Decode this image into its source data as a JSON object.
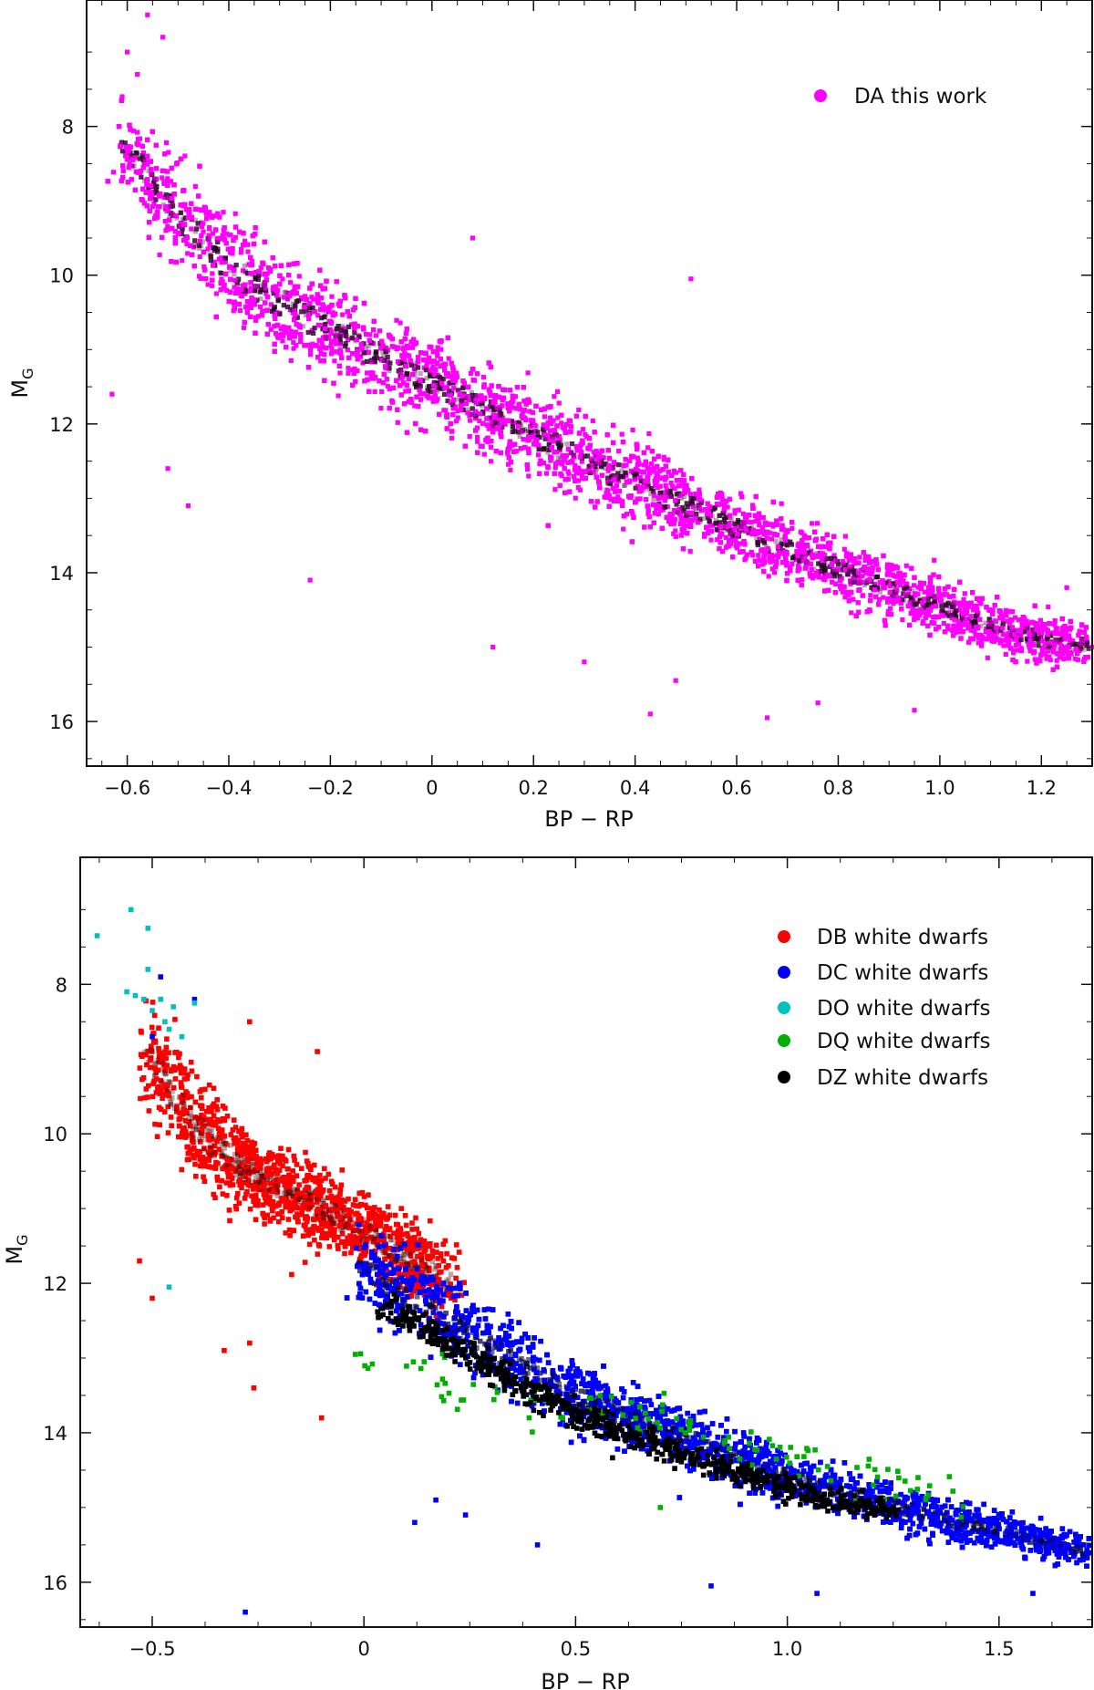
{
  "chart_data": [
    {
      "type": "scatter",
      "panel": "top",
      "title": "",
      "xlabel": "BP − RP",
      "ylabel_main": "M",
      "ylabel_sub": "G",
      "xlim": [
        -0.68,
        1.3
      ],
      "ylim": [
        16.6,
        6.3
      ],
      "y_inverted": true,
      "xticks": [
        -0.6,
        -0.4,
        -0.2,
        0,
        0.2,
        0.4,
        0.6,
        0.8,
        1.0,
        1.2
      ],
      "xtick_labels": [
        "−0.6",
        "−0.4",
        "−0.2",
        "0",
        "0.2",
        "0.4",
        "0.6",
        "0.8",
        "1.0",
        "1.2"
      ],
      "yticks": [
        8,
        10,
        12,
        14,
        16
      ],
      "ytick_labels": [
        "8",
        "10",
        "12",
        "14",
        "16"
      ],
      "legend_position": "top-right",
      "series": [
        {
          "name": "DA this work",
          "color": "#ff00ff",
          "density_color": "#2a0028",
          "sequence_x": [
            -0.6,
            -0.5,
            -0.4,
            -0.3,
            -0.2,
            -0.1,
            0.0,
            0.1,
            0.2,
            0.3,
            0.4,
            0.5,
            0.6,
            0.7,
            0.8,
            0.9,
            1.0,
            1.1,
            1.2,
            1.3
          ],
          "sequence_y": [
            8.3,
            9.2,
            9.9,
            10.35,
            10.75,
            11.1,
            11.45,
            11.8,
            12.15,
            12.5,
            12.8,
            13.1,
            13.4,
            13.7,
            13.95,
            14.2,
            14.45,
            14.7,
            14.9,
            15.0
          ],
          "sequence_spread": [
            0.5,
            0.55,
            0.6,
            0.58,
            0.55,
            0.52,
            0.5,
            0.5,
            0.48,
            0.46,
            0.44,
            0.42,
            0.4,
            0.38,
            0.36,
            0.34,
            0.32,
            0.3,
            0.28,
            0.25
          ],
          "n_points": 9000,
          "outliers": [
            [
              -0.6,
              7.0
            ],
            [
              -0.58,
              7.3
            ],
            [
              -0.56,
              6.5
            ],
            [
              -0.53,
              6.8
            ],
            [
              -0.61,
              7.6
            ],
            [
              -0.63,
              11.6
            ],
            [
              -0.52,
              12.6
            ],
            [
              -0.48,
              13.1
            ],
            [
              -0.24,
              14.1
            ],
            [
              0.12,
              15.0
            ],
            [
              0.3,
              15.2
            ],
            [
              0.43,
              15.9
            ],
            [
              0.48,
              15.45
            ],
            [
              0.66,
              15.95
            ],
            [
              0.76,
              15.75
            ],
            [
              0.95,
              15.85
            ],
            [
              1.25,
              14.2
            ],
            [
              1.28,
              14.8
            ],
            [
              1.3,
              15.0
            ],
            [
              0.51,
              10.05
            ],
            [
              0.08,
              9.5
            ]
          ]
        }
      ]
    },
    {
      "type": "scatter",
      "panel": "bottom",
      "title": "",
      "xlabel": "BP − RP",
      "ylabel_main": "M",
      "ylabel_sub": "G",
      "xlim": [
        -0.67,
        1.72
      ],
      "ylim": [
        16.6,
        6.3
      ],
      "y_inverted": true,
      "xticks": [
        -0.5,
        0,
        0.5,
        1.0,
        1.5
      ],
      "xtick_labels": [
        "−0.5",
        "0",
        "0.5",
        "1.0",
        "1.5"
      ],
      "yticks": [
        8,
        10,
        12,
        14,
        16
      ],
      "ytick_labels": [
        "8",
        "10",
        "12",
        "14",
        "16"
      ],
      "legend_position": "top-right",
      "series": [
        {
          "name": "DB white dwarfs",
          "color": "#ff0000",
          "density_color": "#3a0000",
          "sequence_x": [
            -0.5,
            -0.4,
            -0.3,
            -0.2,
            -0.1,
            0.0,
            0.1,
            0.2
          ],
          "sequence_y": [
            9.0,
            9.9,
            10.4,
            10.75,
            11.0,
            11.3,
            11.65,
            12.0
          ],
          "sequence_spread": [
            0.6,
            0.6,
            0.5,
            0.45,
            0.45,
            0.45,
            0.45,
            0.45
          ],
          "n_points": 1500,
          "outliers": [
            [
              -0.27,
              12.8
            ],
            [
              -0.26,
              13.4
            ],
            [
              -0.1,
              13.8
            ],
            [
              -0.27,
              8.5
            ],
            [
              -0.11,
              8.9
            ],
            [
              -0.5,
              12.2
            ],
            [
              -0.53,
              11.7
            ],
            [
              -0.33,
              12.9
            ]
          ]
        },
        {
          "name": "DC white dwarfs",
          "color": "#0000ff",
          "density_color": "#00003a",
          "sequence_x": [
            0.0,
            0.1,
            0.2,
            0.3,
            0.4,
            0.5,
            0.6,
            0.7,
            0.8,
            0.9,
            1.0,
            1.1,
            1.2,
            1.3,
            1.4,
            1.5,
            1.6,
            1.7
          ],
          "sequence_y": [
            11.8,
            12.15,
            12.5,
            12.85,
            13.2,
            13.5,
            13.75,
            13.95,
            14.15,
            14.4,
            14.6,
            14.75,
            14.9,
            15.05,
            15.2,
            15.3,
            15.45,
            15.6
          ],
          "sequence_spread": [
            0.45,
            0.45,
            0.45,
            0.45,
            0.42,
            0.4,
            0.38,
            0.36,
            0.34,
            0.32,
            0.3,
            0.28,
            0.26,
            0.25,
            0.24,
            0.22,
            0.2,
            0.2
          ],
          "n_points": 5000,
          "outliers": [
            [
              -0.28,
              16.4
            ],
            [
              0.41,
              15.5
            ],
            [
              0.82,
              16.05
            ],
            [
              1.07,
              16.15
            ],
            [
              1.58,
              16.15
            ],
            [
              -0.48,
              7.9
            ],
            [
              -0.5,
              8.7
            ],
            [
              -0.4,
              8.2
            ],
            [
              0.17,
              14.9
            ],
            [
              0.12,
              15.2
            ],
            [
              0.24,
              15.1
            ]
          ]
        },
        {
          "name": "DO white dwarfs",
          "color": "#00c0c0",
          "density_color": "#00c0c0",
          "sequence_x": [],
          "sequence_y": [],
          "sequence_spread": [],
          "n_points": 0,
          "outliers": [
            [
              -0.63,
              7.35
            ],
            [
              -0.55,
              7.0
            ],
            [
              -0.51,
              7.25
            ],
            [
              -0.51,
              7.8
            ],
            [
              -0.56,
              8.1
            ],
            [
              -0.54,
              8.15
            ],
            [
              -0.52,
              8.2
            ],
            [
              -0.5,
              8.35
            ],
            [
              -0.48,
              8.2
            ],
            [
              -0.47,
              8.5
            ],
            [
              -0.46,
              8.6
            ],
            [
              -0.43,
              8.7
            ],
            [
              -0.45,
              8.3
            ],
            [
              -0.4,
              8.25
            ],
            [
              -0.46,
              12.05
            ]
          ]
        },
        {
          "name": "DQ white dwarfs",
          "color": "#00b000",
          "density_color": "#00b000",
          "sequence_x": [
            0.0,
            0.2,
            0.4,
            0.6,
            0.8,
            1.0,
            1.2,
            1.4
          ],
          "sequence_y": [
            13.1,
            13.35,
            13.5,
            13.8,
            14.0,
            14.35,
            14.65,
            14.9
          ],
          "sequence_spread": [
            0.25,
            0.3,
            0.3,
            0.3,
            0.3,
            0.3,
            0.3,
            0.25
          ],
          "n_points": 120,
          "outliers": [
            [
              0.7,
              15.0
            ]
          ]
        },
        {
          "name": "DZ white dwarfs",
          "color": "#000000",
          "density_color": "#000000",
          "sequence_x": [
            0.05,
            0.2,
            0.35,
            0.5,
            0.65,
            0.8,
            0.95,
            1.1,
            1.25
          ],
          "sequence_y": [
            12.3,
            12.8,
            13.3,
            13.75,
            14.05,
            14.4,
            14.65,
            14.9,
            15.05
          ],
          "sequence_spread": [
            0.18,
            0.18,
            0.18,
            0.18,
            0.17,
            0.16,
            0.15,
            0.14,
            0.12
          ],
          "n_points": 700,
          "outliers": []
        }
      ]
    }
  ]
}
